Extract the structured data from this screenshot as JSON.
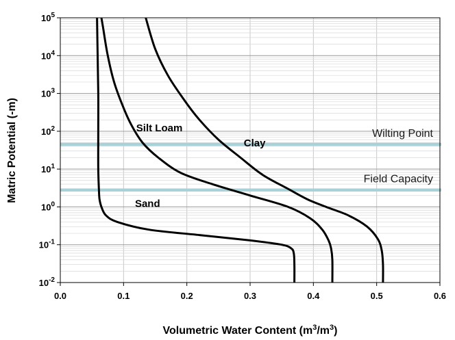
{
  "chart_data": {
    "type": "line",
    "title": "",
    "xlabel": "Volumetric Water Content (m",
    "xlabel_sup1": "3",
    "xlabel_mid": "/m",
    "xlabel_sup2": "3",
    "xlabel_end": ")",
    "ylabel": "Matric Potential (-m)",
    "x_scale": "linear",
    "y_scale": "log",
    "xlim": [
      0.0,
      0.6
    ],
    "ylim": [
      0.01,
      100000
    ],
    "x_ticks": [
      "0.0",
      "0.1",
      "0.2",
      "0.3",
      "0.4",
      "0.5",
      "0.6"
    ],
    "y_ticks": [
      {
        "value": 0.01,
        "base": "10",
        "exp": "-2"
      },
      {
        "value": 0.1,
        "base": "10",
        "exp": "-1"
      },
      {
        "value": 1,
        "base": "10",
        "exp": "0"
      },
      {
        "value": 10,
        "base": "10",
        "exp": "1"
      },
      {
        "value": 100,
        "base": "10",
        "exp": "2"
      },
      {
        "value": 1000,
        "base": "10",
        "exp": "3"
      },
      {
        "value": 10000,
        "base": "10",
        "exp": "4"
      },
      {
        "value": 100000,
        "base": "10",
        "exp": "5"
      }
    ],
    "grid": true,
    "series": [
      {
        "name": "Sand",
        "color": "#000000",
        "points": [
          [
            0.37,
            0.01
          ],
          [
            0.37,
            0.03
          ],
          [
            0.369,
            0.06
          ],
          [
            0.365,
            0.08
          ],
          [
            0.35,
            0.1
          ],
          [
            0.3,
            0.13
          ],
          [
            0.22,
            0.18
          ],
          [
            0.14,
            0.25
          ],
          [
            0.09,
            0.4
          ],
          [
            0.072,
            0.6
          ],
          [
            0.065,
            1.0
          ],
          [
            0.062,
            1.6
          ],
          [
            0.061,
            3.0
          ],
          [
            0.06,
            10
          ],
          [
            0.06,
            100
          ],
          [
            0.06,
            1000
          ],
          [
            0.059,
            10000
          ],
          [
            0.058,
            100000
          ]
        ]
      },
      {
        "name": "Silt Loam",
        "color": "#000000",
        "points": [
          [
            0.43,
            0.01
          ],
          [
            0.43,
            0.04
          ],
          [
            0.428,
            0.08
          ],
          [
            0.424,
            0.13
          ],
          [
            0.414,
            0.25
          ],
          [
            0.395,
            0.5
          ],
          [
            0.36,
            1.0
          ],
          [
            0.3,
            2.0
          ],
          [
            0.24,
            4.0
          ],
          [
            0.19,
            8.0
          ],
          [
            0.155,
            20
          ],
          [
            0.13,
            50
          ],
          [
            0.112,
            150
          ],
          [
            0.098,
            500
          ],
          [
            0.085,
            2000
          ],
          [
            0.075,
            10000
          ],
          [
            0.068,
            50000
          ],
          [
            0.065,
            100000
          ]
        ]
      },
      {
        "name": "Clay",
        "color": "#000000",
        "points": [
          [
            0.51,
            0.01
          ],
          [
            0.51,
            0.03
          ],
          [
            0.508,
            0.07
          ],
          [
            0.502,
            0.14
          ],
          [
            0.485,
            0.3
          ],
          [
            0.455,
            0.6
          ],
          [
            0.42,
            1.0
          ],
          [
            0.39,
            1.6
          ],
          [
            0.36,
            3.0
          ],
          [
            0.32,
            7.0
          ],
          [
            0.285,
            20
          ],
          [
            0.25,
            60
          ],
          [
            0.22,
            200
          ],
          [
            0.195,
            700
          ],
          [
            0.17,
            3000
          ],
          [
            0.15,
            15000
          ],
          [
            0.135,
            100000
          ]
        ]
      }
    ],
    "series_labels": [
      {
        "text": "Silt Loam",
        "x": 0.12,
        "y": 100
      },
      {
        "text": "Clay",
        "x": 0.29,
        "y": 40
      },
      {
        "text": "Sand",
        "x": 0.118,
        "y": 1.0
      }
    ],
    "reference_lines": [
      {
        "label": "Wilting Point",
        "y": 45,
        "color": "#a9d2d8"
      },
      {
        "label": "Field Capacity",
        "y": 2.8,
        "color": "#a9d2d8"
      }
    ]
  }
}
